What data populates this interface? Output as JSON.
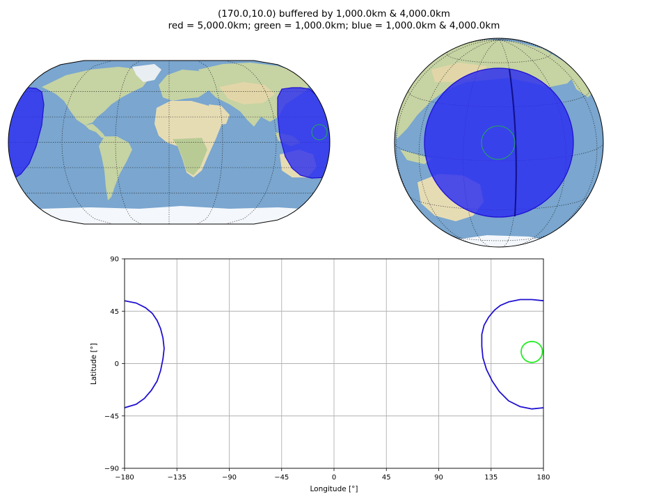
{
  "title_line1": "(170.0,10.0) buffered by 1,000.0km & 4,000.0km",
  "title_line2": "red = 5,000.0km; green = 1,000.0km; blue = 1,000.0km & 4,000.0km",
  "colors": {
    "ocean": "#7aa6cf",
    "land": "#c6d3a3",
    "desert": "#e6dcb4",
    "ice": "#f4f7fb",
    "buffer_fill": "#2a2cf0",
    "buffer_edge": "#1f10d0",
    "green_circle": "#22ee22",
    "red": "#e02020",
    "grid": "#b0b0b0"
  },
  "maps": [
    {
      "name": "robinson-world-map",
      "projection": "Robinson"
    },
    {
      "name": "orthographic-globe",
      "projection": "Orthographic"
    }
  ],
  "chart_data": {
    "type": "line",
    "xlabel": "Longitude [°]",
    "ylabel": "Latitude [°]",
    "xlim": [
      -180,
      180
    ],
    "ylim": [
      -90,
      90
    ],
    "xticks": [
      -180,
      -135,
      -90,
      -45,
      0,
      45,
      90,
      135,
      180
    ],
    "yticks": [
      -90,
      -45,
      0,
      45,
      90
    ],
    "xtick_labels": [
      "−180",
      "−135",
      "−90",
      "−45",
      "0",
      "45",
      "90",
      "135",
      "180"
    ],
    "ytick_labels": [
      "−90",
      "−45",
      "0",
      "45",
      "90"
    ],
    "grid": true,
    "center": {
      "lon": 170.0,
      "lat": 10.0
    },
    "series": [
      {
        "color": "#22ee22",
        "radius_deg": 8.99,
        "shape": "circle"
      },
      {
        "color": "#1f10d0",
        "x": [
          180,
          170,
          160,
          150,
          143,
          138,
          133,
          129,
          127,
          127,
          128,
          131,
          136,
          142,
          150,
          160,
          170,
          180
        ],
        "y": [
          54,
          55,
          55,
          53,
          50,
          46,
          40,
          33,
          25,
          15,
          5,
          -5,
          -15,
          -24,
          -32,
          -37,
          -39,
          -38
        ]
      },
      {
        "color": "#1f10d0",
        "x": [
          -180,
          -170,
          -162,
          -156,
          -152,
          -149,
          -147,
          -146,
          -147,
          -149,
          -152,
          -157,
          -163,
          -170,
          -180
        ],
        "y": [
          54,
          52,
          48,
          43,
          37,
          30,
          22,
          13,
          4,
          -6,
          -15,
          -23,
          -30,
          -35,
          -38
        ]
      }
    ]
  }
}
